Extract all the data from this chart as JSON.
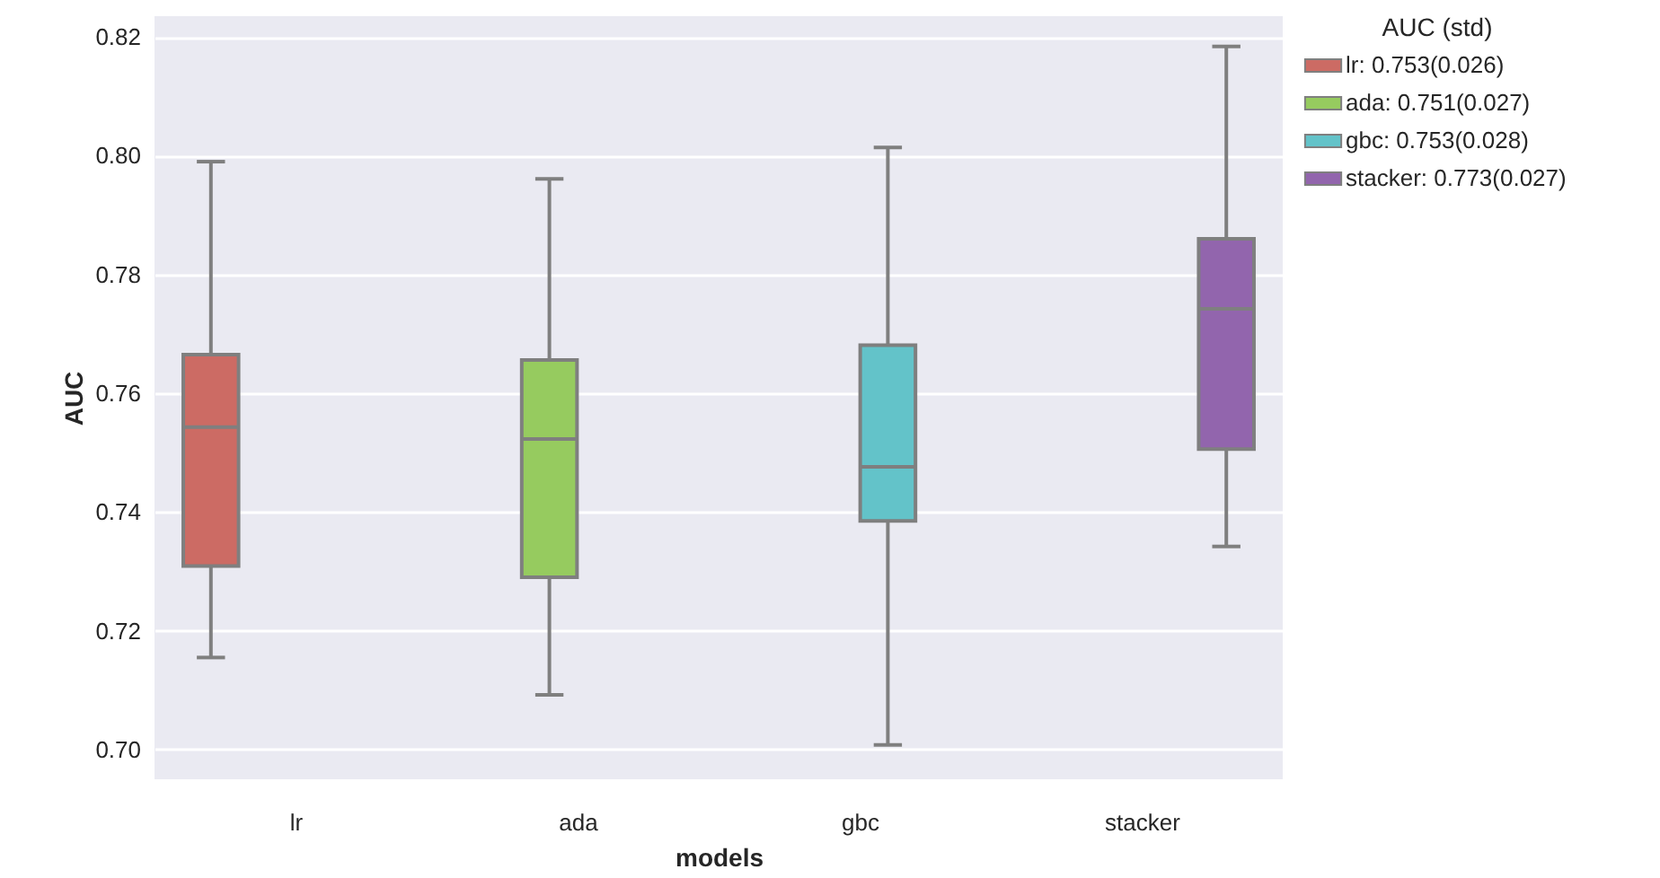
{
  "chart_data": {
    "type": "box",
    "xlabel": "models",
    "ylabel": "AUC",
    "legend_title": "AUC (std)",
    "legend": "top right",
    "grid": "y",
    "categories": [
      "lr",
      "ada",
      "gbc",
      "stacker"
    ],
    "ylim": [
      0.695,
      0.8235
    ],
    "yticks": [
      {
        "value": 0.7,
        "label": "0.70"
      },
      0.72,
      0.74,
      0.76,
      0.78,
      {
        "value": 0.8,
        "label": "0.80"
      },
      0.82
    ],
    "series": [
      {
        "name": "lr: 0.753(0.026)",
        "color": "#cc6b64",
        "boxes": [
          {
            "low": 0.7155,
            "q1": 0.7309,
            "median": 0.7543,
            "q3": 0.7665,
            "high": 0.799
          },
          null,
          null,
          null
        ]
      },
      {
        "name": "ada: 0.751(0.027)",
        "color": "#96cb5f",
        "boxes": [
          null,
          {
            "low": 0.7092,
            "q1": 0.729,
            "median": 0.7523,
            "q3": 0.7656,
            "high": 0.7961
          },
          null,
          null
        ]
      },
      {
        "name": "gbc: 0.753(0.028)",
        "color": "#63c3c9",
        "boxes": [
          null,
          null,
          {
            "low": 0.7008,
            "q1": 0.7385,
            "median": 0.7476,
            "q3": 0.7681,
            "high": 0.8014
          },
          null
        ]
      },
      {
        "name": "stacker: 0.773(0.027)",
        "color": "#9265ad",
        "boxes": [
          null,
          null,
          null,
          {
            "low": 0.7342,
            "q1": 0.7506,
            "median": 0.7742,
            "q3": 0.786,
            "high": 0.8184
          }
        ]
      }
    ]
  }
}
